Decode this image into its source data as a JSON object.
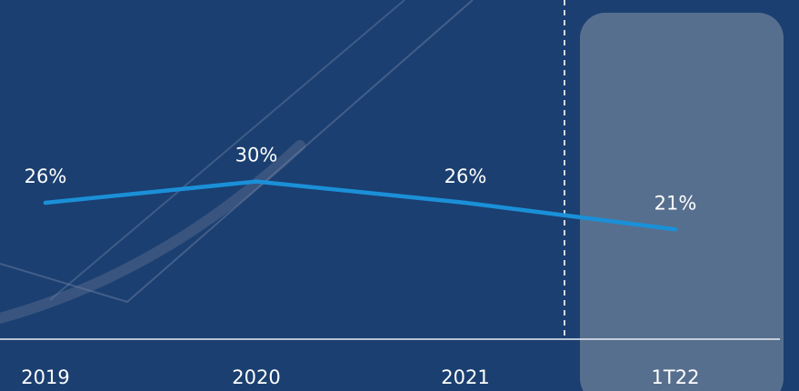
{
  "chart_data": {
    "type": "line",
    "categories": [
      "2019",
      "2020",
      "2021",
      "1T22"
    ],
    "series": [
      {
        "values": [
          26,
          30,
          26,
          21
        ],
        "labels": [
          "26%",
          "30%",
          "26%",
          "21%"
        ]
      }
    ],
    "highlighted_category": "1T22",
    "title": "",
    "xlabel": "",
    "ylabel": "",
    "grid": false,
    "legend": "none"
  },
  "colors": {
    "background": "#1b3f70",
    "line": "#1a90d8",
    "label_text": "#ffffff",
    "axis": "#e9eef5",
    "highlight_panel": "#5e7491",
    "divider": "#ffffff"
  }
}
